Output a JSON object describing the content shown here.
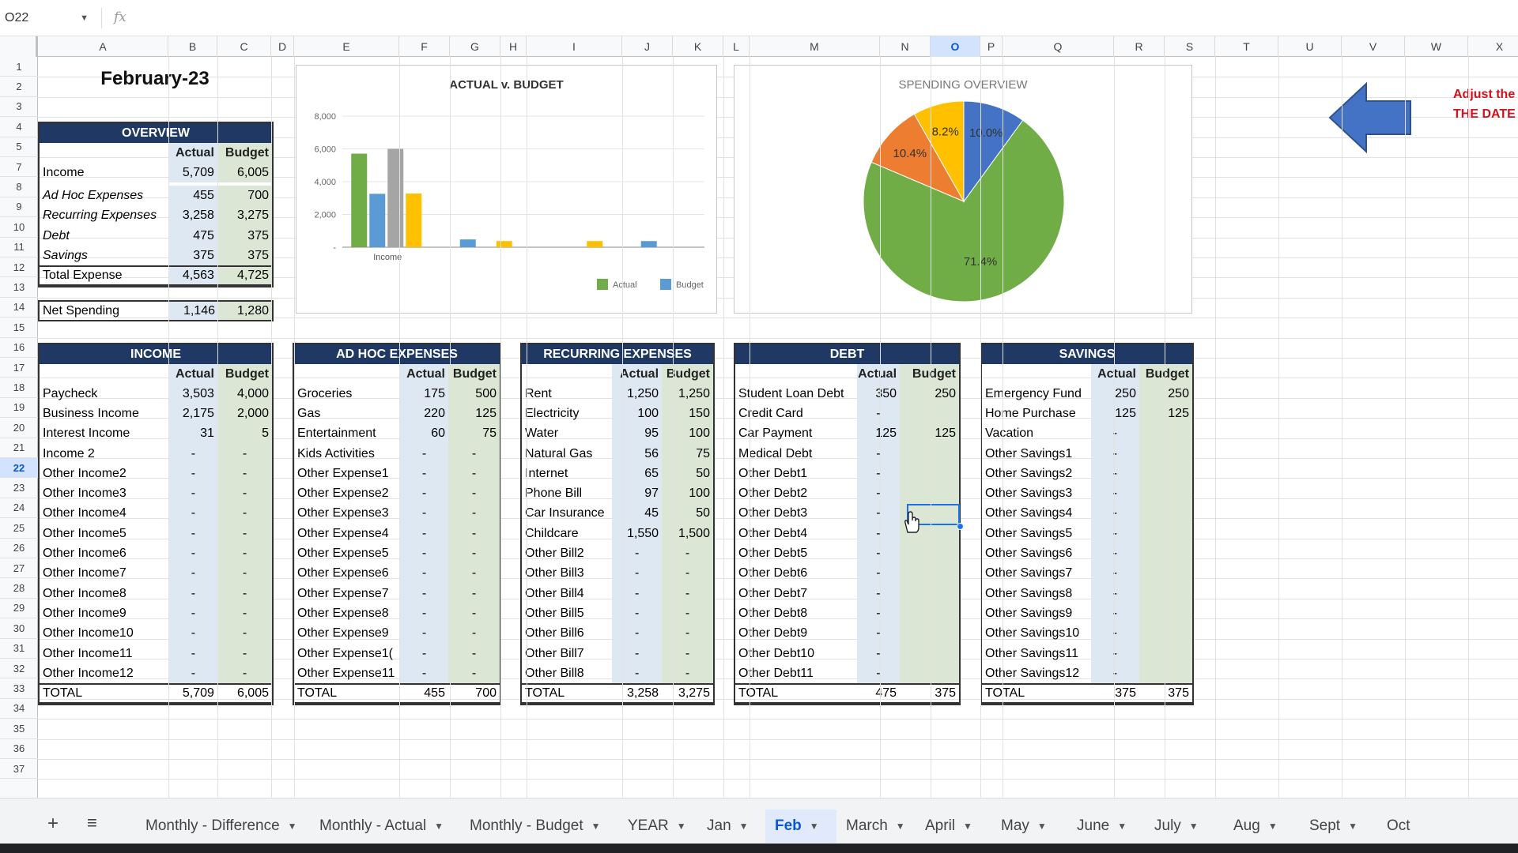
{
  "formula_bar": {
    "cell_ref": "O22",
    "fx": "fx"
  },
  "columns": [
    "A",
    "B",
    "C",
    "D",
    "E",
    "F",
    "G",
    "H",
    "I",
    "J",
    "K",
    "L",
    "M",
    "N",
    "O",
    "P",
    "Q",
    "R",
    "S",
    "T",
    "U",
    "V",
    "W",
    "X"
  ],
  "selected_column": "O",
  "selected_row": 22,
  "rows": [
    1,
    2,
    3,
    4,
    5,
    7,
    8,
    9,
    10,
    11,
    12,
    13,
    14,
    15,
    16,
    17,
    18,
    19,
    20,
    21,
    22,
    23,
    24,
    25,
    26,
    27,
    28,
    29,
    30,
    31,
    32,
    33,
    34,
    35,
    36,
    37
  ],
  "month_title": "February-23",
  "overview": {
    "header": "OVERVIEW",
    "col_actual": "Actual",
    "col_budget": "Budget",
    "rows": [
      {
        "label": "Income",
        "actual": "5,709",
        "budget": "6,005",
        "italic": false
      },
      {
        "label": "Ad Hoc Expenses",
        "actual": "455",
        "budget": "700",
        "italic": true
      },
      {
        "label": "Recurring Expenses",
        "actual": "3,258",
        "budget": "3,275",
        "italic": true
      },
      {
        "label": "Debt",
        "actual": "475",
        "budget": "375",
        "italic": true
      },
      {
        "label": "Savings",
        "actual": "375",
        "budget": "375",
        "italic": true
      },
      {
        "label": "Total Expense",
        "actual": "4,563",
        "budget": "4,725",
        "italic": false
      }
    ],
    "net": {
      "label": "Net Spending",
      "actual": "1,146",
      "budget": "1,280"
    }
  },
  "chart_data": [
    {
      "type": "bar",
      "title": "ACTUAL v. BUDGET",
      "ylim": [
        0,
        8000
      ],
      "y_ticks": [
        "8,000",
        "6,000",
        "4,000",
        "2,000",
        "-"
      ],
      "categories": [
        "Income",
        "",
        "",
        ""
      ],
      "series": [
        {
          "name": "Actual",
          "color": "#70ad47",
          "values": [
            5709,
            0,
            0,
            0
          ]
        },
        {
          "name": "Budget",
          "color": "#5b9bd5",
          "values": [
            3258,
            475,
            0,
            375
          ]
        },
        {
          "name": "",
          "color": "#a5a5a5",
          "values": [
            6005,
            0,
            0,
            0
          ]
        },
        {
          "name": "",
          "color": "#ffc000",
          "values": [
            3275,
            375,
            375,
            0
          ]
        }
      ],
      "legend_placement": "bottom-right"
    },
    {
      "type": "pie",
      "title": "SPENDING OVERVIEW",
      "slices": [
        {
          "label": "71.4%",
          "value": 71.4,
          "color": "#70ad47"
        },
        {
          "label": "10.4%",
          "value": 10.4,
          "color": "#ed7d31"
        },
        {
          "label": "8.2%",
          "value": 8.2,
          "color": "#ffc000"
        },
        {
          "label": "10.0%",
          "value": 10.0,
          "color": "#4472c4"
        }
      ]
    }
  ],
  "annotation": {
    "line1": "Adjust the",
    "line2": "THE DATE"
  },
  "income": {
    "header": "INCOME",
    "col_actual": "Actual",
    "col_budget": "Budget",
    "rows": [
      [
        "Paycheck",
        "3,503",
        "4,000"
      ],
      [
        "Business Income",
        "2,175",
        "2,000"
      ],
      [
        "Interest Income",
        "31",
        "5"
      ],
      [
        "Income 2",
        "-",
        "-"
      ],
      [
        "Other Income2",
        "-",
        "-"
      ],
      [
        "Other Income3",
        "-",
        "-"
      ],
      [
        "Other Income4",
        "-",
        "-"
      ],
      [
        "Other Income5",
        "-",
        "-"
      ],
      [
        "Other Income6",
        "-",
        "-"
      ],
      [
        "Other Income7",
        "-",
        "-"
      ],
      [
        "Other Income8",
        "-",
        "-"
      ],
      [
        "Other Income9",
        "-",
        "-"
      ],
      [
        "Other Income10",
        "-",
        "-"
      ],
      [
        "Other Income11",
        "-",
        "-"
      ],
      [
        "Other Income12",
        "-",
        "-"
      ]
    ],
    "total": [
      "TOTAL",
      "5,709",
      "6,005"
    ]
  },
  "adhoc": {
    "header": "AD HOC EXPENSES",
    "col_actual": "Actual",
    "col_budget": "Budget",
    "rows": [
      [
        "Groceries",
        "175",
        "500"
      ],
      [
        "Gas",
        "220",
        "125"
      ],
      [
        "Entertainment",
        "60",
        "75"
      ],
      [
        "Kids Activities",
        "-",
        "-"
      ],
      [
        "Other Expense1",
        "-",
        "-"
      ],
      [
        "Other Expense2",
        "-",
        "-"
      ],
      [
        "Other Expense3",
        "-",
        "-"
      ],
      [
        "Other Expense4",
        "-",
        "-"
      ],
      [
        "Other Expense5",
        "-",
        "-"
      ],
      [
        "Other Expense6",
        "-",
        "-"
      ],
      [
        "Other Expense7",
        "-",
        "-"
      ],
      [
        "Other Expense8",
        "-",
        "-"
      ],
      [
        "Other Expense9",
        "-",
        "-"
      ],
      [
        "Other Expense1(",
        "-",
        "-"
      ],
      [
        "Other Expense11",
        "-",
        "-"
      ]
    ],
    "total": [
      "TOTAL",
      "455",
      "700"
    ]
  },
  "recurring": {
    "header": "RECURRING EXPENSES",
    "col_actual": "Actual",
    "col_budget": "Budget",
    "rows": [
      [
        "Rent",
        "1,250",
        "1,250"
      ],
      [
        "Electricity",
        "100",
        "150"
      ],
      [
        "Water",
        "95",
        "100"
      ],
      [
        "Natural Gas",
        "56",
        "75"
      ],
      [
        "Internet",
        "65",
        "50"
      ],
      [
        "Phone Bill",
        "97",
        "100"
      ],
      [
        "Car Insurance",
        "45",
        "50"
      ],
      [
        "Childcare",
        "1,550",
        "1,500"
      ],
      [
        "Other Bill2",
        "-",
        "-"
      ],
      [
        "Other Bill3",
        "-",
        "-"
      ],
      [
        "Other Bill4",
        "-",
        "-"
      ],
      [
        "Other Bill5",
        "-",
        "-"
      ],
      [
        "Other Bill6",
        "-",
        "-"
      ],
      [
        "Other Bill7",
        "-",
        "-"
      ],
      [
        "Other Bill8",
        "-",
        "-"
      ]
    ],
    "total": [
      "TOTAL",
      "3,258",
      "3,275"
    ]
  },
  "debt": {
    "header": "DEBT",
    "col_actual": "Actual",
    "col_budget": "Budget",
    "rows": [
      [
        "Student Loan Debt",
        "350",
        "250"
      ],
      [
        "Credit Card",
        "-",
        ""
      ],
      [
        "Car Payment",
        "125",
        "125"
      ],
      [
        "Medical Debt",
        "-",
        ""
      ],
      [
        "Other Debt1",
        "-",
        ""
      ],
      [
        "Other Debt2",
        "-",
        ""
      ],
      [
        "Other Debt3",
        "-",
        ""
      ],
      [
        "Other Debt4",
        "-",
        ""
      ],
      [
        "Other Debt5",
        "-",
        ""
      ],
      [
        "Other Debt6",
        "-",
        ""
      ],
      [
        "Other Debt7",
        "-",
        ""
      ],
      [
        "Other Debt8",
        "-",
        ""
      ],
      [
        "Other Debt9",
        "-",
        ""
      ],
      [
        "Other Debt10",
        "-",
        ""
      ],
      [
        "Other Debt11",
        "-",
        ""
      ]
    ],
    "total": [
      "TOTAL",
      "475",
      "375"
    ]
  },
  "savings": {
    "header": "SAVINGS",
    "col_actual": "Actual",
    "col_budget": "Budget",
    "rows": [
      [
        "Emergency Fund",
        "250",
        "250"
      ],
      [
        "Home Purchase",
        "125",
        "125"
      ],
      [
        "Vacation",
        "-",
        ""
      ],
      [
        "Other Savings1",
        "-",
        ""
      ],
      [
        "Other Savings2",
        "-",
        ""
      ],
      [
        "Other Savings3",
        "-",
        ""
      ],
      [
        "Other Savings4",
        "-",
        ""
      ],
      [
        "Other Savings5",
        "-",
        ""
      ],
      [
        "Other Savings6",
        "-",
        ""
      ],
      [
        "Other Savings7",
        "-",
        ""
      ],
      [
        "Other Savings8",
        "-",
        ""
      ],
      [
        "Other Savings9",
        "-",
        ""
      ],
      [
        "Other Savings10",
        "-",
        ""
      ],
      [
        "Other Savings11",
        "-",
        ""
      ],
      [
        "Other Savings12",
        "-",
        ""
      ]
    ],
    "total": [
      "TOTAL",
      "375",
      "375"
    ]
  },
  "tabs": [
    {
      "label": "Monthly - Difference",
      "active": false
    },
    {
      "label": "Monthly - Actual",
      "active": false
    },
    {
      "label": "Monthly - Budget",
      "active": false
    },
    {
      "label": "YEAR",
      "active": false
    },
    {
      "label": "Jan",
      "active": false
    },
    {
      "label": "Feb",
      "active": true
    },
    {
      "label": "March",
      "active": false
    },
    {
      "label": "April",
      "active": false
    },
    {
      "label": "May",
      "active": false
    },
    {
      "label": "June",
      "active": false
    },
    {
      "label": "July",
      "active": false
    },
    {
      "label": "Aug",
      "active": false
    },
    {
      "label": "Sept",
      "active": false
    },
    {
      "label": "Oct",
      "active": false
    }
  ],
  "icons": {
    "add_sheet": "plus-icon",
    "all_sheets": "menu-icon",
    "arrow": "left-arrow-icon"
  }
}
